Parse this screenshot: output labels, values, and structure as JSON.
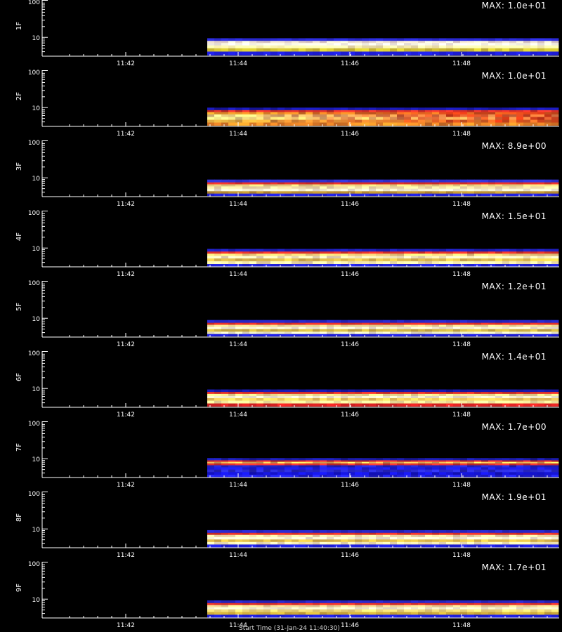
{
  "chart_data": [
    {
      "type": "heatmap",
      "panel_label": "1F",
      "max_label": "MAX: 1.0e+01",
      "time_ticks": [
        "11:42",
        "11:44",
        "11:46",
        "11:48"
      ],
      "y_ticks": [
        "100",
        "10"
      ],
      "ylim": [
        3,
        100
      ],
      "y_scale": "log",
      "grid": false,
      "rows": [
        {
          "y": 8.5,
          "color": "#2b2bd8"
        },
        {
          "y": 7.5,
          "color": "#f4e6d2"
        },
        {
          "y": 6.5,
          "color": "#fdfde9"
        },
        {
          "y": 5.5,
          "color": "#fbf3b0"
        },
        {
          "y": 4.5,
          "color": "#d4c534"
        },
        {
          "y": 3.6,
          "color": "#1e1ee0"
        }
      ],
      "noise": 0.12,
      "drift": {
        "pattern": "none"
      }
    },
    {
      "type": "heatmap",
      "panel_label": "2F",
      "max_label": "MAX: 1.0e+01",
      "time_ticks": [
        "11:42",
        "11:44",
        "11:46",
        "11:48"
      ],
      "y_ticks": [
        "100",
        "10"
      ],
      "ylim": [
        3,
        100
      ],
      "y_scale": "log",
      "grid": false,
      "rows": [
        {
          "y": 9.0,
          "color": "#1818b0"
        },
        {
          "y": 8.0,
          "color": "#e4322a"
        },
        {
          "y": 7.0,
          "color": "#f3a02c"
        },
        {
          "y": 6.0,
          "color": "#fde88a"
        },
        {
          "y": 5.0,
          "color": "#fbf28c"
        },
        {
          "y": 4.2,
          "color": "#e8b443"
        },
        {
          "y": 3.5,
          "color": "#f28a28"
        }
      ],
      "noise": 0.22,
      "drift": {
        "pattern": "fade-to-red"
      }
    },
    {
      "type": "heatmap",
      "panel_label": "3F",
      "max_label": "MAX: 8.9e+00",
      "time_ticks": [
        "11:42",
        "11:44",
        "11:46",
        "11:48"
      ],
      "y_ticks": [
        "100",
        "10"
      ],
      "ylim": [
        3,
        100
      ],
      "y_scale": "log",
      "grid": false,
      "rows": [
        {
          "y": 8.0,
          "color": "#3131d2"
        },
        {
          "y": 7.0,
          "color": "#e13129"
        },
        {
          "y": 6.2,
          "color": "#f0d680"
        },
        {
          "y": 5.4,
          "color": "#f8e6a8"
        },
        {
          "y": 4.6,
          "color": "#fcf8d4"
        },
        {
          "y": 3.9,
          "color": "#c09432"
        },
        {
          "y": 3.4,
          "color": "#2020e0"
        }
      ],
      "noise": 0.12,
      "drift": {
        "pattern": "none"
      }
    },
    {
      "type": "heatmap",
      "panel_label": "4F",
      "max_label": "MAX: 1.5e+01",
      "time_ticks": [
        "11:42",
        "11:44",
        "11:46",
        "11:48"
      ],
      "y_ticks": [
        "100",
        "10"
      ],
      "ylim": [
        3,
        100
      ],
      "y_scale": "log",
      "grid": false,
      "rows": [
        {
          "y": 8.5,
          "color": "#2020c0"
        },
        {
          "y": 7.5,
          "color": "#e2322b"
        },
        {
          "y": 6.5,
          "color": "#f8d47a"
        },
        {
          "y": 5.6,
          "color": "#fdf5c0"
        },
        {
          "y": 4.7,
          "color": "#e8c450"
        },
        {
          "y": 3.9,
          "color": "#fbf0b0"
        },
        {
          "y": 3.3,
          "color": "#2222e0"
        }
      ],
      "noise": 0.16,
      "drift": {
        "pattern": "none"
      }
    },
    {
      "type": "heatmap",
      "panel_label": "5F",
      "max_label": "MAX: 1.2e+01",
      "time_ticks": [
        "11:42",
        "11:44",
        "11:46",
        "11:48"
      ],
      "y_ticks": [
        "100",
        "10"
      ],
      "ylim": [
        3,
        100
      ],
      "y_scale": "log",
      "grid": false,
      "rows": [
        {
          "y": 8.0,
          "color": "#2727c8"
        },
        {
          "y": 7.0,
          "color": "#e0302a"
        },
        {
          "y": 6.2,
          "color": "#f4dc8c"
        },
        {
          "y": 5.4,
          "color": "#fcf7da"
        },
        {
          "y": 4.6,
          "color": "#d6b842"
        },
        {
          "y": 3.9,
          "color": "#f0f0c8"
        },
        {
          "y": 3.4,
          "color": "#1d1de0"
        }
      ],
      "noise": 0.12,
      "drift": {
        "pattern": "none"
      }
    },
    {
      "type": "heatmap",
      "panel_label": "6F",
      "max_label": "MAX: 1.4e+01",
      "time_ticks": [
        "11:42",
        "11:44",
        "11:46",
        "11:48"
      ],
      "y_ticks": [
        "100",
        "10"
      ],
      "ylim": [
        3,
        100
      ],
      "y_scale": "log",
      "grid": false,
      "rows": [
        {
          "y": 8.5,
          "color": "#1818a8"
        },
        {
          "y": 7.6,
          "color": "#e03028"
        },
        {
          "y": 6.6,
          "color": "#f8e88e"
        },
        {
          "y": 5.8,
          "color": "#fdfad6"
        },
        {
          "y": 5.0,
          "color": "#f4d060"
        },
        {
          "y": 4.2,
          "color": "#fcf2a0"
        },
        {
          "y": 3.5,
          "color": "#e02424"
        }
      ],
      "noise": 0.14,
      "drift": {
        "pattern": "none"
      }
    },
    {
      "type": "heatmap",
      "panel_label": "7F",
      "max_label": "MAX: 1.7e+00",
      "time_ticks": [
        "11:42",
        "11:44",
        "11:46",
        "11:48"
      ],
      "y_ticks": [
        "100",
        "10"
      ],
      "ylim": [
        3,
        100
      ],
      "y_scale": "log",
      "grid": false,
      "rows": [
        {
          "y": 9.5,
          "color": "#1a1aa8"
        },
        {
          "y": 8.6,
          "color": "#d82c2c"
        },
        {
          "y": 7.8,
          "color": "#f2c45a"
        },
        {
          "y": 7.0,
          "color": "#e03030"
        },
        {
          "y": 6.2,
          "color": "#2222c8"
        },
        {
          "y": 5.4,
          "color": "#1c1ce8"
        },
        {
          "y": 4.6,
          "color": "#2a2ad0"
        },
        {
          "y": 3.9,
          "color": "#1515d8"
        },
        {
          "y": 3.3,
          "color": "#2020e0"
        }
      ],
      "noise": 0.26,
      "drift": {
        "pattern": "none"
      }
    },
    {
      "type": "heatmap",
      "panel_label": "8F",
      "max_label": "MAX: 1.9e+01",
      "time_ticks": [
        "11:42",
        "11:44",
        "11:46",
        "11:48"
      ],
      "y_ticks": [
        "100",
        "10"
      ],
      "ylim": [
        3,
        100
      ],
      "y_scale": "log",
      "grid": false,
      "rows": [
        {
          "y": 8.3,
          "color": "#2727c8"
        },
        {
          "y": 7.3,
          "color": "#e2322b"
        },
        {
          "y": 6.4,
          "color": "#fae6a4"
        },
        {
          "y": 5.5,
          "color": "#fdfad8"
        },
        {
          "y": 4.7,
          "color": "#e6c048"
        },
        {
          "y": 4.0,
          "color": "#fbf3b8"
        },
        {
          "y": 3.4,
          "color": "#1f1fe0"
        }
      ],
      "noise": 0.14,
      "drift": {
        "pattern": "none"
      }
    },
    {
      "type": "heatmap",
      "panel_label": "9F",
      "max_label": "MAX: 1.7e+01",
      "time_ticks": [
        "11:42",
        "11:44",
        "11:46",
        "11:48"
      ],
      "y_ticks": [
        "100",
        "10"
      ],
      "ylim": [
        3,
        100
      ],
      "y_scale": "log",
      "grid": false,
      "rows": [
        {
          "y": 8.3,
          "color": "#2727c8"
        },
        {
          "y": 7.3,
          "color": "#e2322b"
        },
        {
          "y": 6.4,
          "color": "#f8df95"
        },
        {
          "y": 5.6,
          "color": "#fdf9d2"
        },
        {
          "y": 4.8,
          "color": "#f5e078"
        },
        {
          "y": 4.0,
          "color": "#d4b03c"
        },
        {
          "y": 3.4,
          "color": "#1f1fe0"
        }
      ],
      "noise": 0.12,
      "drift": {
        "pattern": "none"
      }
    }
  ],
  "footer": {
    "xaxis_label": "Start Time (31-Jan-24 11:40:30)"
  }
}
